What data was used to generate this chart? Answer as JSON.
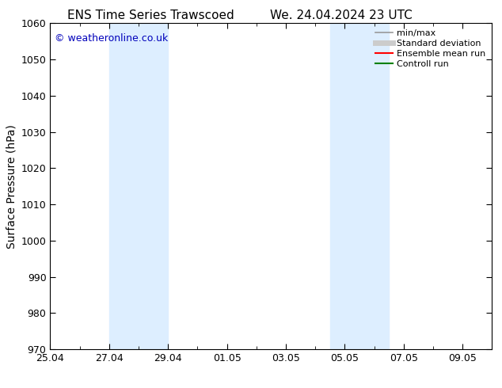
{
  "title_left": "ENS Time Series Trawscoed",
  "title_right": "We. 24.04.2024 23 UTC",
  "ylabel": "Surface Pressure (hPa)",
  "ylim": [
    970,
    1060
  ],
  "yticks": [
    970,
    980,
    990,
    1000,
    1010,
    1020,
    1030,
    1040,
    1050,
    1060
  ],
  "xlim": [
    0,
    15
  ],
  "xtick_labels": [
    "25.04",
    "27.04",
    "29.04",
    "01.05",
    "03.05",
    "05.05",
    "07.05",
    "09.05"
  ],
  "xtick_positions": [
    0,
    2,
    4,
    6,
    8,
    10,
    12,
    14
  ],
  "shaded_bands": [
    {
      "x_start": 2,
      "x_end": 4,
      "color": "#ddeeff"
    },
    {
      "x_start": 9.5,
      "x_end": 11.5,
      "color": "#ddeeff"
    }
  ],
  "watermark_text": "© weatheronline.co.uk",
  "watermark_color": "#0000bb",
  "legend_items": [
    {
      "label": "min/max",
      "color": "#999999",
      "lw": 1.2,
      "style": "solid"
    },
    {
      "label": "Standard deviation",
      "color": "#cccccc",
      "lw": 5,
      "style": "solid"
    },
    {
      "label": "Ensemble mean run",
      "color": "#ff0000",
      "lw": 1.5,
      "style": "solid"
    },
    {
      "label": "Controll run",
      "color": "#008000",
      "lw": 1.5,
      "style": "solid"
    }
  ],
  "background_color": "#ffffff",
  "plot_bg_color": "#ffffff",
  "title_fontsize": 11,
  "tick_fontsize": 9,
  "label_fontsize": 10,
  "legend_fontsize": 8
}
